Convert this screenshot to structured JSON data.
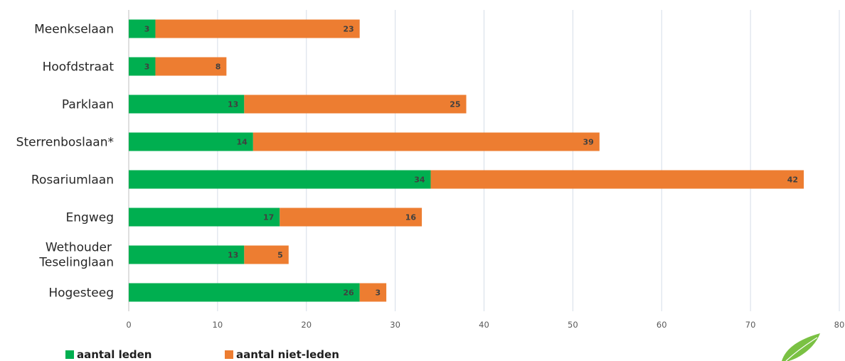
{
  "chart_data": {
    "type": "bar",
    "orientation": "horizontal",
    "stacked": true,
    "categories": [
      "Meenkselaan",
      "Hoofdstraat",
      "Parklaan",
      "Sterrenboslaan*",
      "Rosariumlaan",
      "Engweg",
      "Wethouder Teselinglaan",
      "Hogesteeg"
    ],
    "series": [
      {
        "name": "aantal leden",
        "color": "#00AF50",
        "values": [
          3,
          3,
          13,
          14,
          34,
          17,
          13,
          26
        ]
      },
      {
        "name": "aantal niet-leden",
        "color": "#ED7D31",
        "values": [
          23,
          8,
          25,
          39,
          42,
          16,
          5,
          3
        ]
      }
    ],
    "xlim": [
      0,
      80
    ],
    "xticks": [
      0,
      10,
      20,
      30,
      40,
      50,
      60,
      70,
      80
    ],
    "grid": "vertical",
    "legend_position": "bottom-left",
    "title": "",
    "xlabel": "",
    "ylabel": ""
  },
  "decor": {
    "logo_icon": "green-leaf-icon",
    "leaf_color": "#7AC143"
  }
}
